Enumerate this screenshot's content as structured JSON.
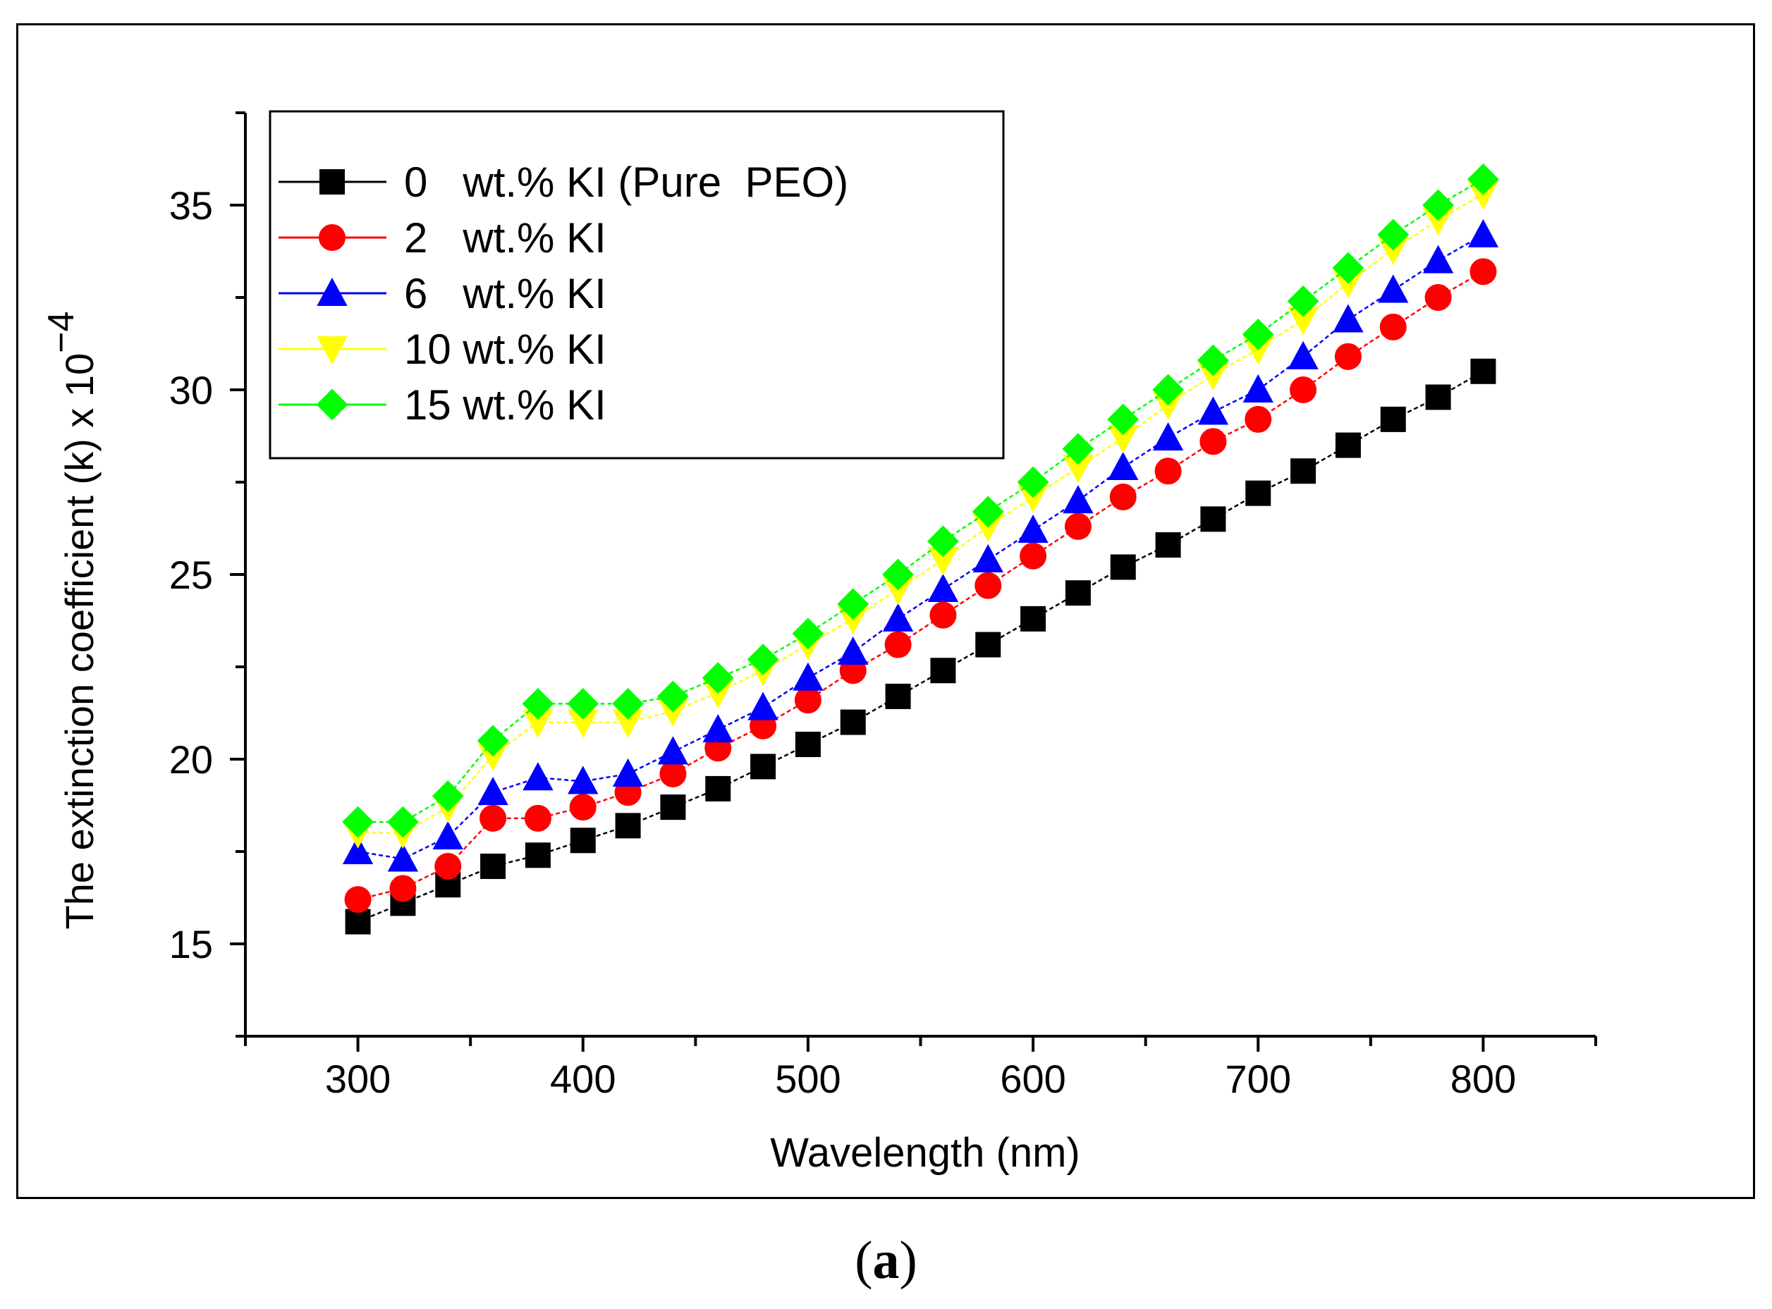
{
  "caption": {
    "open": "(",
    "label": "a",
    "close": ")"
  },
  "chart_data": {
    "type": "line",
    "title": "",
    "xlabel": "Wavelength (nm)",
    "ylabel": "The extinction coefficient (k) x 10",
    "ylabel_exponent": "−4",
    "xlim": [
      250,
      850
    ],
    "ylim": [
      12.5,
      37.5
    ],
    "xticks": [
      300,
      400,
      500,
      600,
      700,
      800
    ],
    "yticks": [
      15,
      20,
      25,
      30,
      35
    ],
    "grid": false,
    "legend_position": "top-left",
    "x": [
      300,
      320,
      340,
      360,
      380,
      400,
      420,
      440,
      460,
      480,
      500,
      520,
      540,
      560,
      580,
      600,
      620,
      640,
      660,
      680,
      700,
      720,
      740,
      760,
      780,
      800
    ],
    "series": [
      {
        "name": "0   wt.% KI (Pure  PEO)",
        "color": "#000000",
        "marker": "square",
        "values": [
          15.6,
          16.1,
          16.6,
          17.1,
          17.4,
          17.8,
          18.2,
          18.7,
          19.2,
          19.8,
          20.4,
          21.0,
          21.7,
          22.4,
          23.1,
          23.8,
          24.5,
          25.2,
          25.8,
          26.5,
          27.2,
          27.8,
          28.5,
          29.2,
          29.8,
          30.5
        ]
      },
      {
        "name": "2   wt.% KI",
        "color": "#ff0000",
        "marker": "circle",
        "values": [
          16.2,
          16.5,
          17.1,
          18.4,
          18.4,
          18.7,
          19.1,
          19.6,
          20.3,
          20.9,
          21.6,
          22.4,
          23.1,
          23.9,
          24.7,
          25.5,
          26.3,
          27.1,
          27.8,
          28.6,
          29.2,
          30.0,
          30.9,
          31.7,
          32.5,
          33.2
        ]
      },
      {
        "name": "6   wt.% KI",
        "color": "#0000ff",
        "marker": "triangle-up",
        "values": [
          17.5,
          17.3,
          17.9,
          19.1,
          19.5,
          19.4,
          19.6,
          20.2,
          20.8,
          21.4,
          22.2,
          22.9,
          23.8,
          24.6,
          25.4,
          26.2,
          27.0,
          27.9,
          28.7,
          29.4,
          30.0,
          30.9,
          31.9,
          32.7,
          33.5,
          34.2
        ]
      },
      {
        "name": "10 wt.% KI",
        "color": "#ffff00",
        "marker": "triangle-down",
        "values": [
          18.0,
          18.0,
          18.7,
          20.1,
          21.0,
          21.0,
          21.0,
          21.3,
          21.8,
          22.4,
          23.1,
          23.8,
          24.6,
          25.4,
          26.3,
          27.1,
          27.9,
          28.7,
          29.6,
          30.4,
          31.1,
          31.9,
          32.9,
          33.8,
          34.6,
          35.3
        ]
      },
      {
        "name": "15 wt.% KI",
        "color": "#00ff00",
        "marker": "diamond",
        "values": [
          18.3,
          18.3,
          19.0,
          20.5,
          21.5,
          21.5,
          21.5,
          21.7,
          22.2,
          22.7,
          23.4,
          24.2,
          25.0,
          25.9,
          26.7,
          27.5,
          28.4,
          29.2,
          30.0,
          30.8,
          31.5,
          32.4,
          33.3,
          34.2,
          35.0,
          35.7
        ]
      }
    ]
  }
}
